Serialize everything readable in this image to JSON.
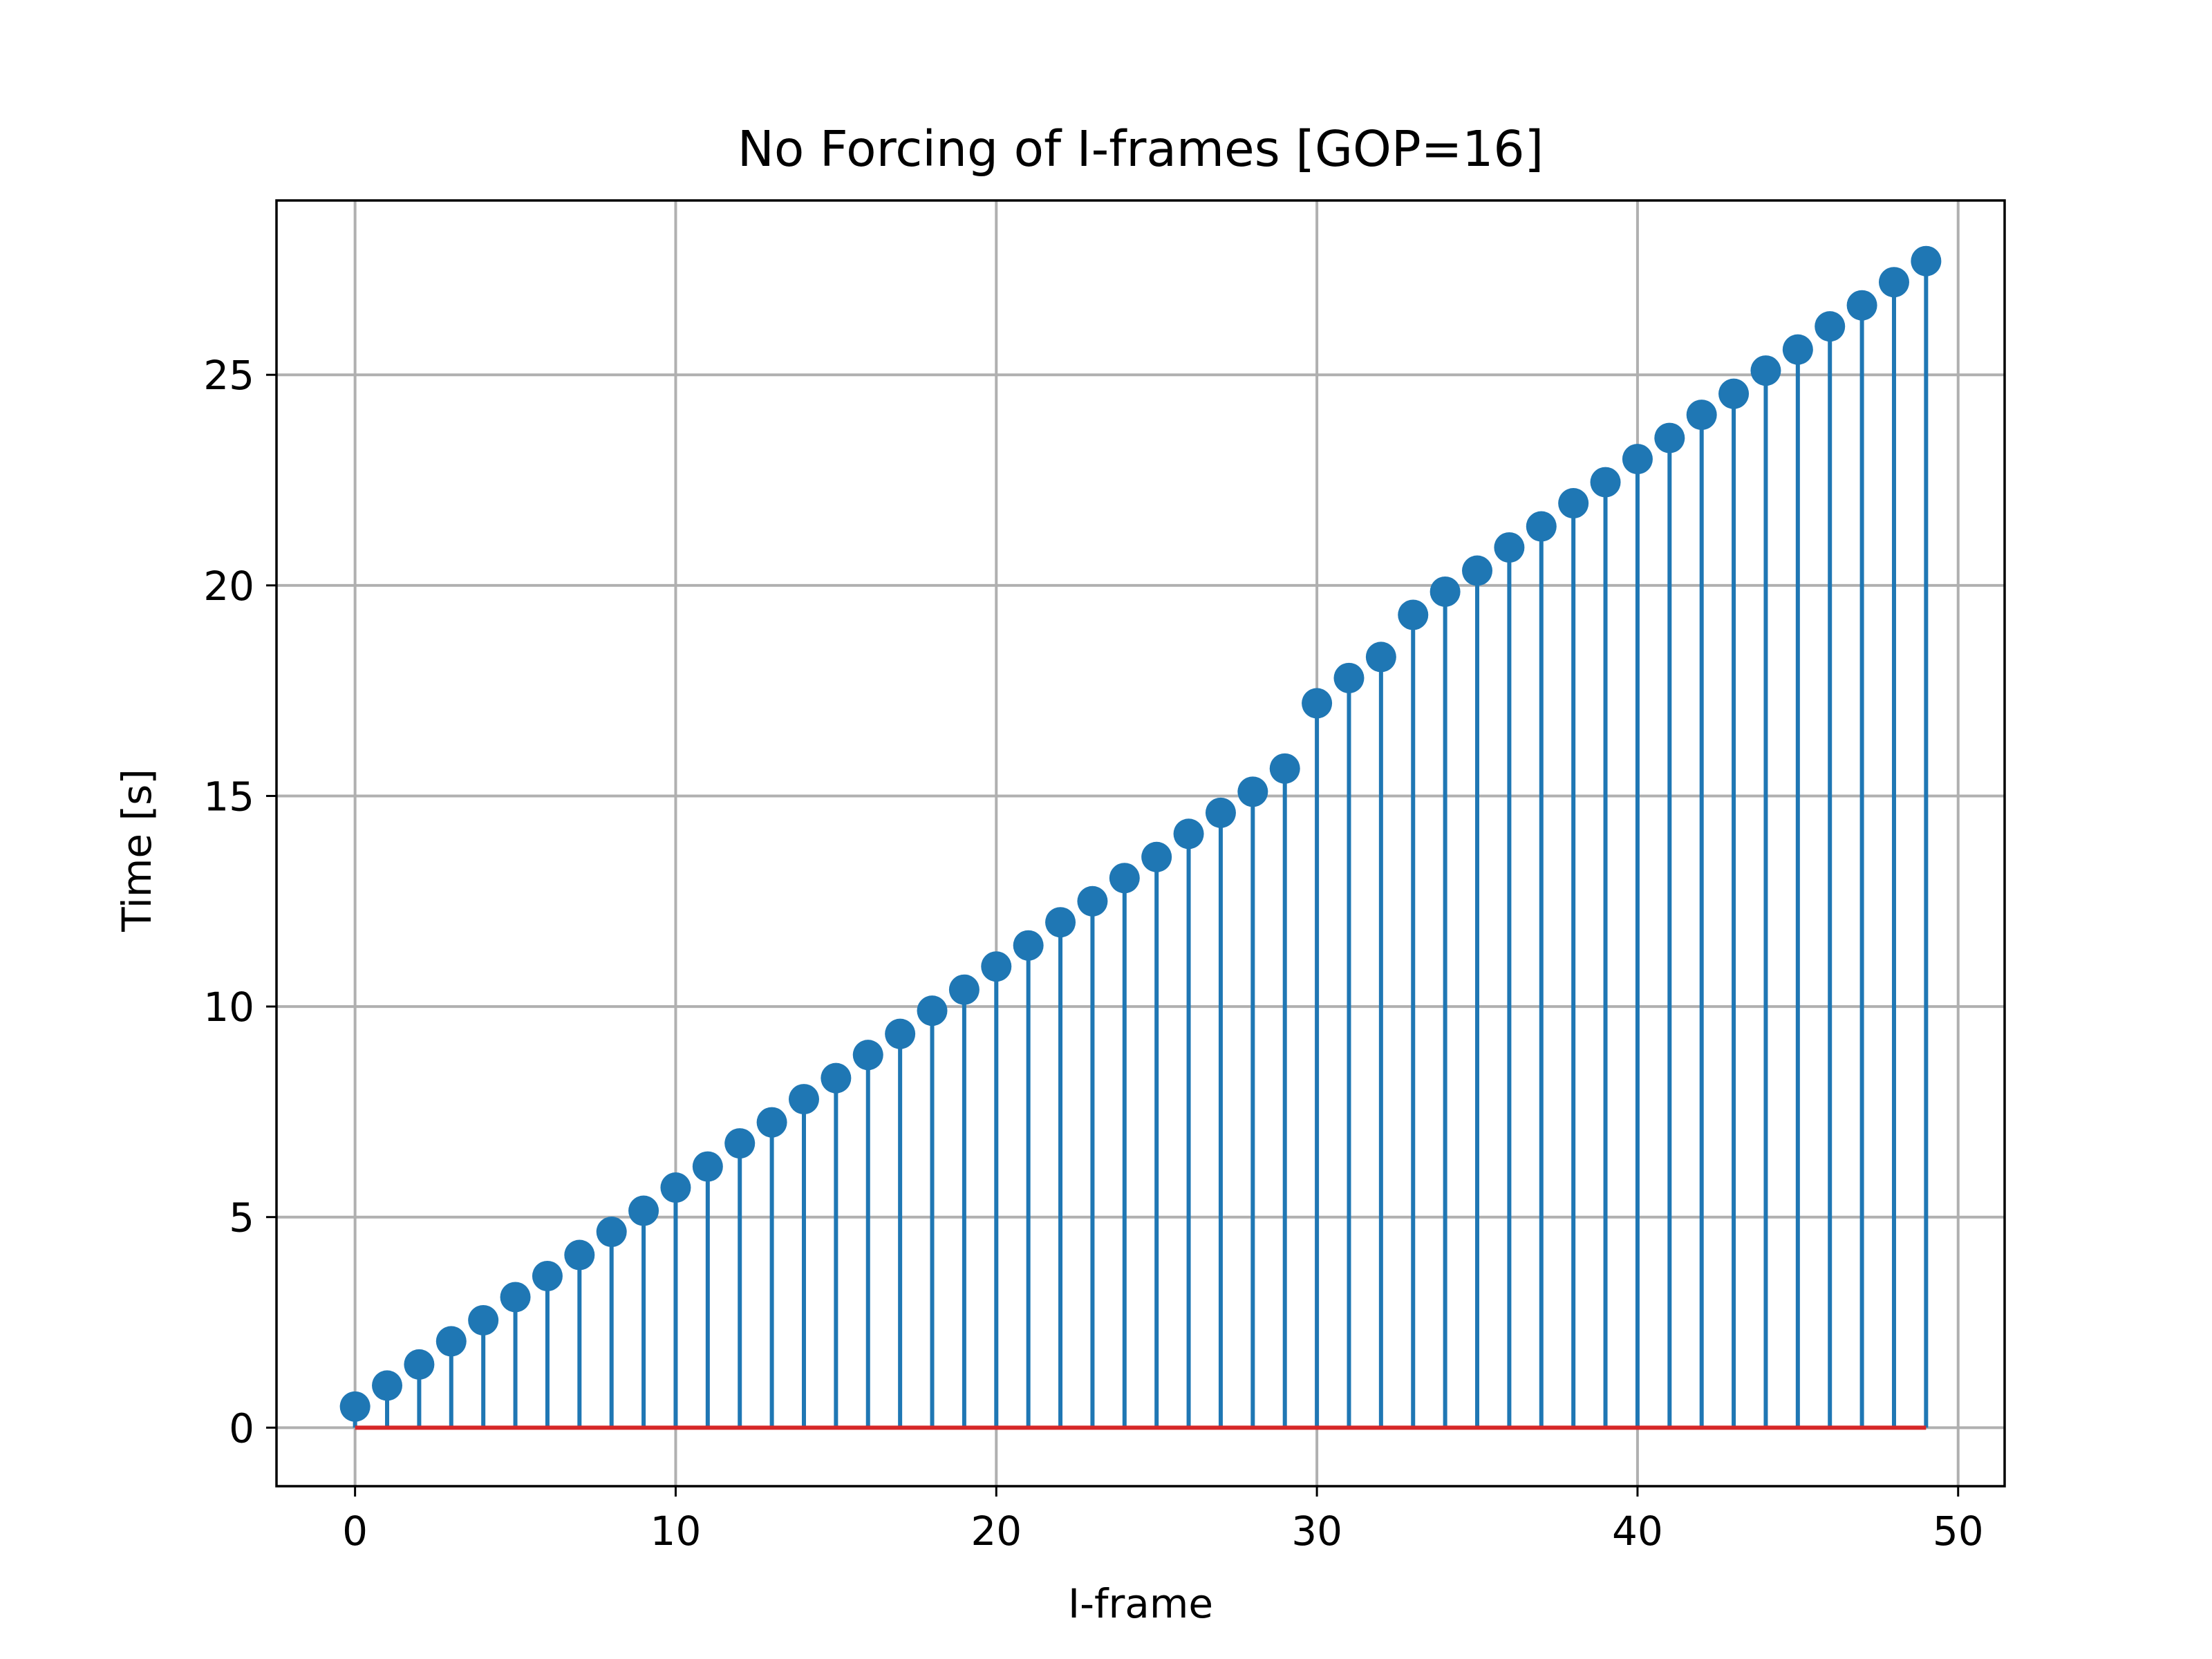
{
  "chart_data": {
    "type": "stem",
    "title": "No Forcing of I-frames [GOP=16]",
    "xlabel": "I-frame",
    "ylabel": "Time [s]",
    "xlim": [
      -2.45,
      51.45
    ],
    "ylim": [
      -1.39,
      29.14
    ],
    "xticks": [
      0,
      10,
      20,
      30,
      40,
      50
    ],
    "yticks": [
      0,
      5,
      10,
      15,
      20,
      25
    ],
    "grid": true,
    "baseline": 0,
    "colors": {
      "stem": "#1f77b4",
      "marker": "#1f77b4",
      "baseline": "#d62728"
    },
    "x": [
      0,
      1,
      2,
      3,
      4,
      5,
      6,
      7,
      8,
      9,
      10,
      11,
      12,
      13,
      14,
      15,
      16,
      17,
      18,
      19,
      20,
      21,
      22,
      23,
      24,
      25,
      26,
      27,
      28,
      29,
      30,
      31,
      32,
      33,
      34,
      35,
      36,
      37,
      38,
      39,
      40,
      41,
      42,
      43,
      44,
      45,
      46,
      47,
      48,
      49
    ],
    "y": [
      0.5,
      1.0,
      1.5,
      2.05,
      2.55,
      3.1,
      3.6,
      4.1,
      4.65,
      5.15,
      5.7,
      6.2,
      6.75,
      7.25,
      7.8,
      8.3,
      8.85,
      9.35,
      9.9,
      10.4,
      10.95,
      11.45,
      12.0,
      12.5,
      13.05,
      13.55,
      14.1,
      14.6,
      15.1,
      15.65,
      17.2,
      17.8,
      18.3,
      19.3,
      19.85,
      20.35,
      20.9,
      21.4,
      21.95,
      22.45,
      23.0,
      23.5,
      24.05,
      24.55,
      25.1,
      25.6,
      26.15,
      26.65,
      27.2,
      27.7
    ]
  }
}
